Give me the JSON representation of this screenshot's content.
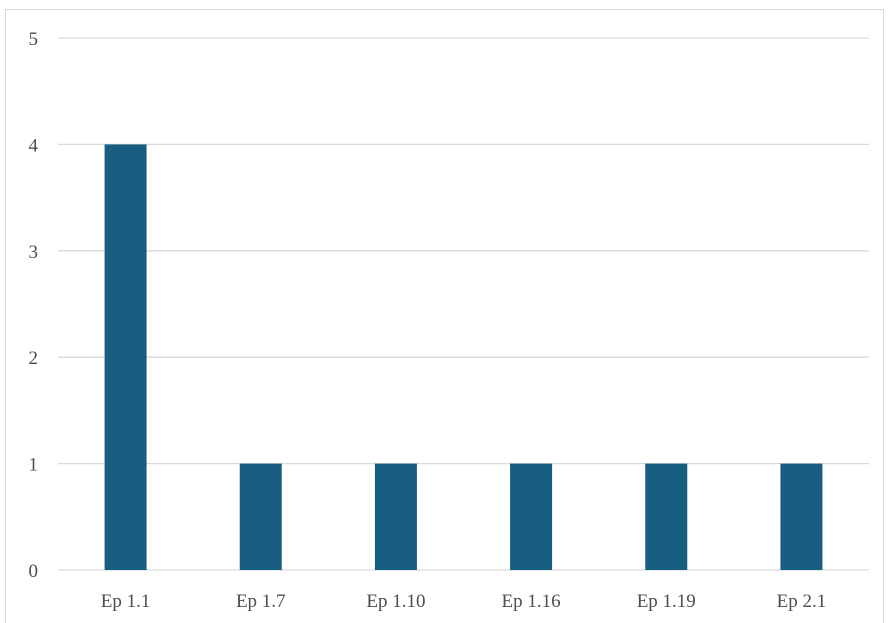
{
  "chart_data": {
    "type": "bar",
    "title": "",
    "xlabel": "",
    "ylabel": "",
    "categories": [
      "Ep 1.1",
      "Ep 1.7",
      "Ep 1.10",
      "Ep 1.16",
      "Ep 1.19",
      "Ep 2.1"
    ],
    "values": [
      4,
      1,
      1,
      1,
      1,
      1
    ],
    "ylim": [
      0,
      5
    ],
    "yticks": [
      0,
      1,
      2,
      3,
      4,
      5
    ],
    "grid": true,
    "legend": "none",
    "colors": {
      "bar": "#175e80",
      "grid": "#d9d9d9",
      "text": "#4d4d4d"
    }
  }
}
